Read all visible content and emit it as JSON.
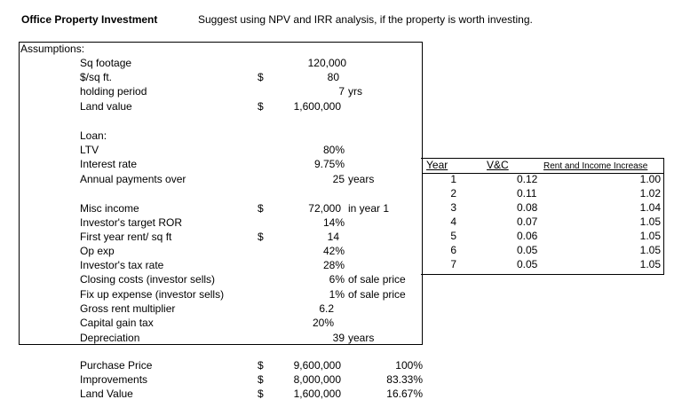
{
  "header": {
    "title": "Office Property Investment",
    "suggestion": "Suggest using NPV and IRR analysis, if the property is worth investing."
  },
  "assumptions": {
    "heading": "Assumptions:",
    "rows": [
      {
        "label": "Sq footage",
        "dollar": "",
        "value": "120,000",
        "unit": ""
      },
      {
        "label": "$/sq ft.",
        "dollar": "$",
        "value": "80",
        "unit": ""
      },
      {
        "label": "holding period",
        "dollar": "",
        "value": "7",
        "unit": "yrs"
      },
      {
        "label": "Land value",
        "dollar": "$",
        "value": "1,600,000",
        "unit": ""
      },
      {
        "label": "Loan:",
        "dollar": "",
        "value": "",
        "unit": ""
      },
      {
        "label": "LTV",
        "dollar": "",
        "value": "80%",
        "unit": ""
      },
      {
        "label": "Interest rate",
        "dollar": "",
        "value": "9.75%",
        "unit": ""
      },
      {
        "label": "Annual payments over",
        "dollar": "",
        "value": "25",
        "unit": "years"
      },
      {
        "label": "Misc income",
        "dollar": "$",
        "value": "72,000",
        "unit": "in year 1"
      },
      {
        "label": "Investor's target ROR",
        "dollar": "",
        "value": "14%",
        "unit": ""
      },
      {
        "label": "First year rent/ sq ft",
        "dollar": "$",
        "value": "14",
        "unit": ""
      },
      {
        "label": "Op exp",
        "dollar": "",
        "value": "42%",
        "unit": ""
      },
      {
        "label": "Investor's tax rate",
        "dollar": "",
        "value": "28%",
        "unit": ""
      },
      {
        "label": "Closing costs (investor sells)",
        "dollar": "",
        "value": "6%",
        "unit": "of sale price"
      },
      {
        "label": "Fix up expense (investor sells)",
        "dollar": "",
        "value": "1%",
        "unit": "of sale price"
      },
      {
        "label": "Gross rent multiplier",
        "dollar": "",
        "value": "6.2",
        "unit": ""
      },
      {
        "label": "Capital gain tax",
        "dollar": "",
        "value": "20%",
        "unit": ""
      },
      {
        "label": "Depreciation",
        "dollar": "",
        "value": "39",
        "unit": "years"
      }
    ]
  },
  "rate_table": {
    "headers": {
      "year": "Year",
      "vc": "V&C",
      "increase": "Rent and Income Increase"
    },
    "rows": [
      {
        "year": "1",
        "vc": "0.12",
        "increase": "1.00"
      },
      {
        "year": "2",
        "vc": "0.11",
        "increase": "1.02"
      },
      {
        "year": "3",
        "vc": "0.08",
        "increase": "1.04"
      },
      {
        "year": "4",
        "vc": "0.07",
        "increase": "1.05"
      },
      {
        "year": "5",
        "vc": "0.06",
        "increase": "1.05"
      },
      {
        "year": "6",
        "vc": "0.05",
        "increase": "1.05"
      },
      {
        "year": "7",
        "vc": "0.05",
        "increase": "1.05"
      }
    ]
  },
  "costs": {
    "rows": [
      {
        "label": "Purchase Price",
        "dollar": "$",
        "value": "9,600,000",
        "pct": "100%"
      },
      {
        "label": "Improvements",
        "dollar": "$",
        "value": "8,000,000",
        "pct": "83.33%"
      },
      {
        "label": "Land Value",
        "dollar": "$",
        "value": "1,600,000",
        "pct": "16.67%"
      }
    ]
  }
}
